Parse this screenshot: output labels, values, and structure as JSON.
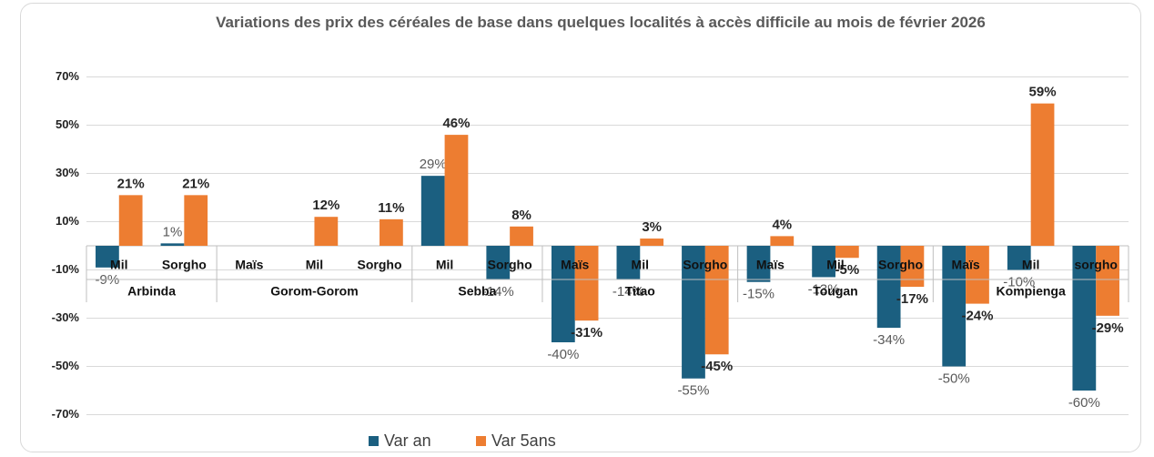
{
  "chart_data": {
    "type": "bar",
    "title": "Variations des prix des céréales de base dans quelques localités à accès difficile au mois de février 2026",
    "groups": [
      {
        "name": "Arbinda",
        "categories": [
          "Mil",
          "Sorgho"
        ]
      },
      {
        "name": "Gorom-Gorom",
        "categories": [
          "Maïs",
          "Mil",
          "Sorgho"
        ]
      },
      {
        "name": "Sebba",
        "categories": [
          "Mil",
          "Sorgho"
        ]
      },
      {
        "name": "Titao",
        "categories": [
          "Maïs",
          "Mil",
          "Sorgho"
        ]
      },
      {
        "name": "Tougan",
        "categories": [
          "Maïs",
          "Mil",
          "Sorgho"
        ]
      },
      {
        "name": "Kompienga",
        "categories": [
          "Maïs",
          "Mil",
          "sorgho"
        ]
      }
    ],
    "series": [
      {
        "name": "Var an",
        "color": "#1b5f80",
        "values": [
          -9,
          1,
          null,
          null,
          null,
          29,
          -14,
          -40,
          -14,
          -55,
          -15,
          -13,
          -34,
          -50,
          -10,
          -60
        ],
        "value_labels": [
          "-9%",
          "1%",
          null,
          null,
          null,
          "29%",
          "-14%",
          "-40%",
          "-14%",
          "-55%",
          "-15%",
          "-13%",
          "-34%",
          "-50%",
          "-10%",
          "-60%"
        ]
      },
      {
        "name": "Var 5ans",
        "color": "#ed7d31",
        "values": [
          21,
          21,
          null,
          12,
          11,
          46,
          8,
          -31,
          3,
          -45,
          4,
          -5,
          -17,
          -24,
          59,
          -29
        ],
        "value_labels": [
          "21%",
          "21%",
          null,
          "12%",
          "11%",
          "46%",
          "8%",
          "-31%",
          "3%",
          "-45%",
          "4%",
          "-5%",
          "-17%",
          "-24%",
          "59%",
          "-29%"
        ]
      }
    ],
    "ylim": [
      -80,
      80
    ],
    "yticks": [
      {
        "value": -70,
        "label": "-70%"
      },
      {
        "value": -50,
        "label": "-50%"
      },
      {
        "value": -30,
        "label": "-30%"
      },
      {
        "value": -10,
        "label": "-10%"
      },
      {
        "value": 10,
        "label": "10%"
      },
      {
        "value": 30,
        "label": "30%"
      },
      {
        "value": 50,
        "label": "50%"
      },
      {
        "value": 70,
        "label": "70%"
      }
    ],
    "grid": true
  }
}
